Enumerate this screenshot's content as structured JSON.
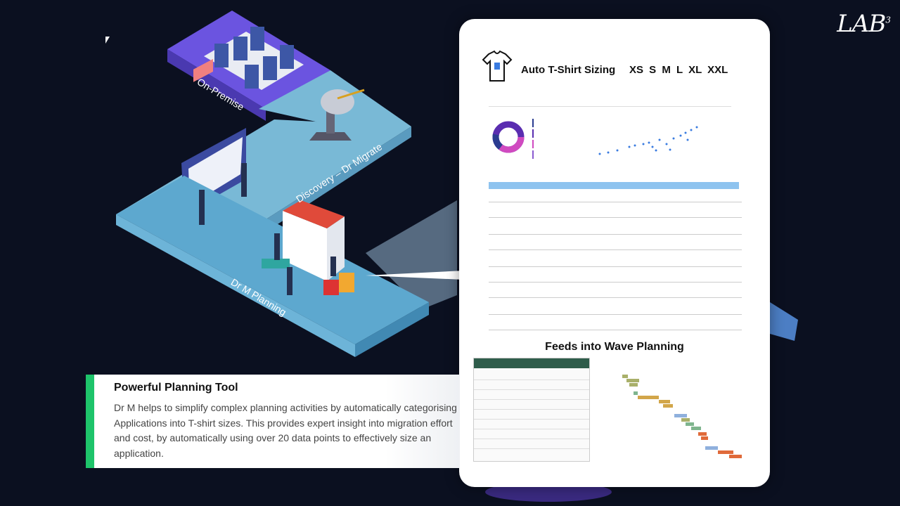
{
  "branding": {
    "logo": "LAB",
    "logo_sup": "3"
  },
  "diagram": {
    "on_premise": "On-Premise",
    "discovery": "Discovery – Dr Migrate",
    "planning": "Dr M Planning"
  },
  "card": {
    "tshirt_title": "Auto T-Shirt Sizing",
    "tshirt_sizes": "XS  S  M  L  XL  XXL",
    "wave_title": "Feeds into  Wave Planning"
  },
  "textbox": {
    "title": "Powerful Planning Tool",
    "body": "Dr M helps to simplify complex planning activities by automatically categorising Applications into T-shirt sizes. This provides expert insight into migration effort and cost, by automatically using over 20 data points to effectively size an application."
  },
  "colors": {
    "accent": "#1ec46a",
    "platform": "#79b9d6",
    "purple": "#6b54e0"
  }
}
